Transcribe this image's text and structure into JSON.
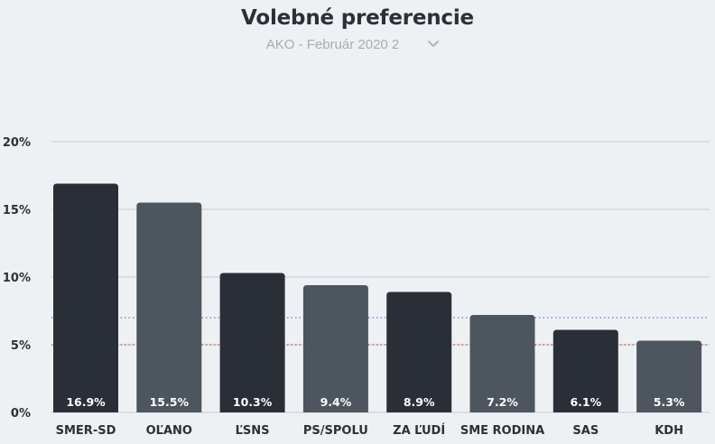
{
  "header": {
    "title": "Volebné preferencie",
    "subtitle": "AKO - Február 2020 2",
    "dropdown_icon": "chevron-down-icon"
  },
  "colors": {
    "bar_dark": "#292e37",
    "bar_light": "#4d555f",
    "grid": "#c7ccd2",
    "threshold_blue": "#5b7fc1",
    "threshold_red": "#d04141",
    "label_text": "#ffffff",
    "axis_text": "#2b3038"
  },
  "chart_data": {
    "type": "bar",
    "title": "",
    "xlabel": "",
    "ylabel": "",
    "ylim": [
      0,
      20
    ],
    "yticks": [
      0,
      5,
      10,
      15,
      20
    ],
    "ytick_labels": [
      "0%",
      "5%",
      "10%",
      "15%",
      "20%"
    ],
    "grid": true,
    "categories": [
      "SMER-SD",
      "OĽANO",
      "ĽSNS",
      "PS/SPOLU",
      "ZA ĽUDÍ",
      "SME RODINA",
      "SAS",
      "KDH"
    ],
    "values": [
      16.9,
      15.5,
      10.3,
      9.4,
      8.9,
      7.2,
      6.1,
      5.3
    ],
    "value_labels": [
      "16.9%",
      "15.5%",
      "10.3%",
      "9.4%",
      "8.9%",
      "7.2%",
      "6.1%",
      "5.3%"
    ],
    "bar_shades": [
      "dark",
      "light",
      "dark",
      "light",
      "dark",
      "light",
      "dark",
      "light"
    ],
    "reference_lines": [
      {
        "value": 7,
        "color": "blue",
        "style": "dotted"
      },
      {
        "value": 5,
        "color": "red",
        "style": "dotted"
      }
    ]
  }
}
